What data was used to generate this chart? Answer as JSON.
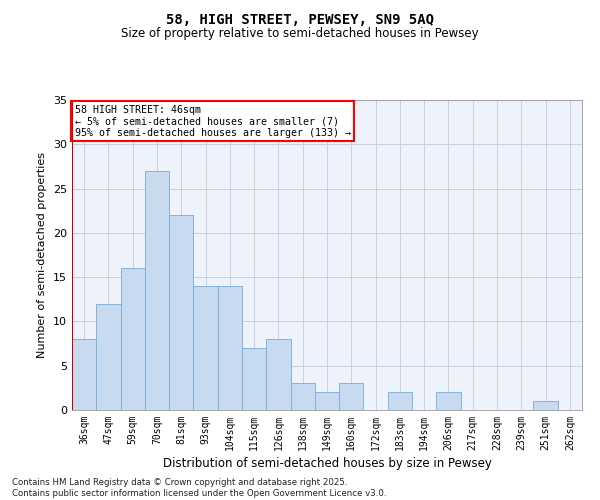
{
  "title_line1": "58, HIGH STREET, PEWSEY, SN9 5AQ",
  "title_line2": "Size of property relative to semi-detached houses in Pewsey",
  "xlabel": "Distribution of semi-detached houses by size in Pewsey",
  "ylabel": "Number of semi-detached properties",
  "categories": [
    "36sqm",
    "47sqm",
    "59sqm",
    "70sqm",
    "81sqm",
    "93sqm",
    "104sqm",
    "115sqm",
    "126sqm",
    "138sqm",
    "149sqm",
    "160sqm",
    "172sqm",
    "183sqm",
    "194sqm",
    "206sqm",
    "217sqm",
    "228sqm",
    "239sqm",
    "251sqm",
    "262sqm"
  ],
  "values": [
    8,
    12,
    16,
    27,
    22,
    14,
    14,
    7,
    8,
    3,
    2,
    3,
    0,
    2,
    0,
    2,
    0,
    0,
    0,
    1,
    0
  ],
  "bar_color": "#c8daf0",
  "bar_edge_color": "#7aabd4",
  "vline_color": "#cc0000",
  "vline_x": -0.5,
  "annotation_title": "58 HIGH STREET: 46sqm",
  "annotation_line1": "← 5% of semi-detached houses are smaller (7)",
  "annotation_line2": "95% of semi-detached houses are larger (133) →",
  "ylim": [
    0,
    35
  ],
  "yticks": [
    0,
    5,
    10,
    15,
    20,
    25,
    30,
    35
  ],
  "footnote_line1": "Contains HM Land Registry data © Crown copyright and database right 2025.",
  "footnote_line2": "Contains public sector information licensed under the Open Government Licence v3.0.",
  "grid_color": "#c8d0df",
  "bg_color": "#eef2fa"
}
